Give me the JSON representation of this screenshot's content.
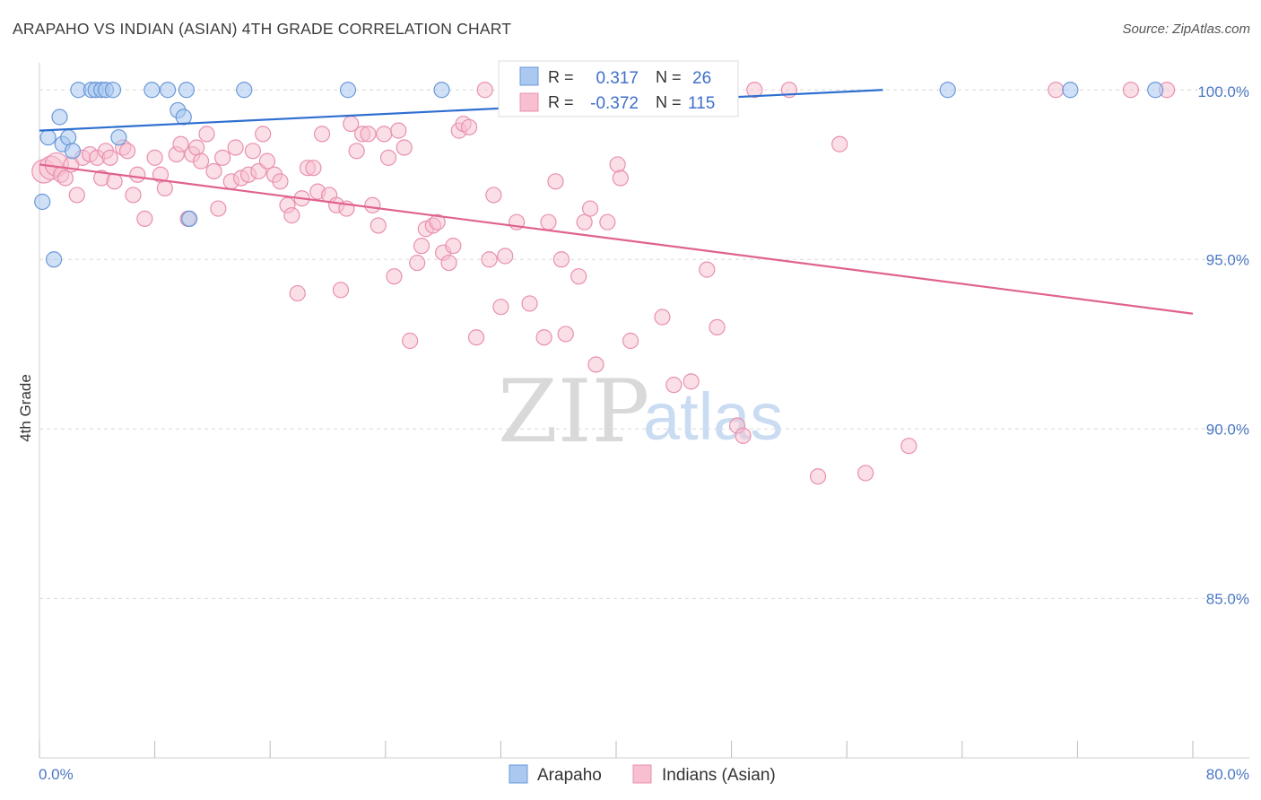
{
  "title": "ARAPAHO VS INDIAN (ASIAN) 4TH GRADE CORRELATION CHART",
  "source": "Source: ZipAtlas.com",
  "watermark": {
    "zip": "ZIP",
    "atlas": "atlas"
  },
  "colors": {
    "blue_fill": "#aac8f0",
    "blue_stroke": "#6a98d8",
    "blue_line": "#2f6fd0",
    "pink_fill": "#f8bfd0",
    "pink_stroke": "#e890ae",
    "pink_line": "#e0628e",
    "grid": "#d8d8d8",
    "tick_label": "#4a78c4"
  },
  "chart_data": {
    "type": "scatter",
    "title": "ARAPAHO VS INDIAN (ASIAN) 4TH GRADE CORRELATION CHART",
    "xlabel": "",
    "ylabel": "4th Grade",
    "xlim": [
      0,
      80
    ],
    "ylim": [
      80.3,
      100.8
    ],
    "x_tick_labels": [
      "0.0%",
      "80.0%"
    ],
    "y_ticks": [
      {
        "value": 100,
        "label": "100.0%"
      },
      {
        "value": 95,
        "label": "95.0%"
      },
      {
        "value": 90,
        "label": "90.0%"
      },
      {
        "value": 85,
        "label": "85.0%"
      }
    ],
    "legend": [
      {
        "name": "Arapaho",
        "r_label": "R =",
        "r_value": "0.317",
        "n_label": "N =",
        "n_value": "26"
      },
      {
        "name": "Indians (Asian)",
        "r_label": "R =",
        "r_value": "-0.372",
        "n_label": "N =",
        "n_value": "115"
      }
    ],
    "series": [
      {
        "name": "Arapaho",
        "trend": {
          "x": [
            0,
            58.5
          ],
          "y": [
            98.8,
            100.0
          ]
        },
        "points": [
          [
            0.2,
            96.7
          ],
          [
            0.6,
            98.6
          ],
          [
            1.0,
            95.0
          ],
          [
            1.4,
            99.2
          ],
          [
            1.6,
            98.4
          ],
          [
            2.0,
            98.6
          ],
          [
            2.3,
            98.2
          ],
          [
            2.7,
            100
          ],
          [
            3.6,
            100
          ],
          [
            3.9,
            100
          ],
          [
            4.3,
            100
          ],
          [
            4.6,
            100
          ],
          [
            5.1,
            100
          ],
          [
            5.5,
            98.6
          ],
          [
            7.8,
            100
          ],
          [
            8.9,
            100
          ],
          [
            9.6,
            99.4
          ],
          [
            10.0,
            99.2
          ],
          [
            10.2,
            100
          ],
          [
            10.4,
            96.2
          ],
          [
            14.2,
            100
          ],
          [
            21.4,
            100
          ],
          [
            27.9,
            100
          ],
          [
            63.0,
            100
          ],
          [
            71.5,
            100
          ],
          [
            77.4,
            100
          ]
        ]
      },
      {
        "name": "Indians (Asian)",
        "trend": {
          "x": [
            0,
            80
          ],
          "y": [
            97.8,
            93.4
          ]
        },
        "points": [
          [
            0.3,
            97.6
          ],
          [
            0.8,
            97.7
          ],
          [
            1.2,
            97.8
          ],
          [
            1.5,
            97.5
          ],
          [
            1.8,
            97.4
          ],
          [
            2.2,
            97.8
          ],
          [
            2.6,
            96.9
          ],
          [
            3.0,
            98.0
          ],
          [
            3.5,
            98.1
          ],
          [
            4.0,
            98.0
          ],
          [
            4.3,
            97.4
          ],
          [
            4.6,
            98.2
          ],
          [
            4.9,
            98.0
          ],
          [
            5.2,
            97.3
          ],
          [
            5.8,
            98.3
          ],
          [
            6.1,
            98.2
          ],
          [
            6.5,
            96.9
          ],
          [
            6.8,
            97.5
          ],
          [
            7.3,
            96.2
          ],
          [
            8.0,
            98.0
          ],
          [
            8.4,
            97.5
          ],
          [
            8.7,
            97.1
          ],
          [
            9.5,
            98.1
          ],
          [
            9.8,
            98.4
          ],
          [
            10.3,
            96.2
          ],
          [
            10.6,
            98.1
          ],
          [
            10.9,
            98.3
          ],
          [
            11.2,
            97.9
          ],
          [
            11.6,
            98.7
          ],
          [
            12.1,
            97.6
          ],
          [
            12.4,
            96.5
          ],
          [
            12.7,
            98.0
          ],
          [
            13.3,
            97.3
          ],
          [
            13.6,
            98.3
          ],
          [
            14.0,
            97.4
          ],
          [
            14.5,
            97.5
          ],
          [
            14.8,
            98.2
          ],
          [
            15.2,
            97.6
          ],
          [
            15.5,
            98.7
          ],
          [
            15.8,
            97.9
          ],
          [
            16.3,
            97.5
          ],
          [
            16.7,
            97.3
          ],
          [
            17.2,
            96.6
          ],
          [
            17.5,
            96.3
          ],
          [
            17.9,
            94.0
          ],
          [
            18.2,
            96.8
          ],
          [
            18.6,
            97.7
          ],
          [
            19.0,
            97.7
          ],
          [
            19.3,
            97.0
          ],
          [
            19.6,
            98.7
          ],
          [
            20.1,
            96.9
          ],
          [
            20.6,
            96.6
          ],
          [
            20.9,
            94.1
          ],
          [
            21.3,
            96.5
          ],
          [
            21.6,
            99.0
          ],
          [
            22.0,
            98.2
          ],
          [
            22.4,
            98.7
          ],
          [
            22.8,
            98.7
          ],
          [
            23.1,
            96.6
          ],
          [
            23.5,
            96.0
          ],
          [
            23.9,
            98.7
          ],
          [
            24.2,
            98.0
          ],
          [
            24.6,
            94.5
          ],
          [
            24.9,
            98.8
          ],
          [
            25.3,
            98.3
          ],
          [
            25.7,
            92.6
          ],
          [
            26.2,
            94.9
          ],
          [
            26.5,
            95.4
          ],
          [
            26.8,
            95.9
          ],
          [
            27.3,
            96.0
          ],
          [
            27.6,
            96.1
          ],
          [
            28.0,
            95.2
          ],
          [
            28.4,
            94.9
          ],
          [
            28.7,
            95.4
          ],
          [
            29.1,
            98.8
          ],
          [
            29.4,
            99.0
          ],
          [
            29.8,
            98.9
          ],
          [
            30.3,
            92.7
          ],
          [
            30.9,
            100
          ],
          [
            31.2,
            95.0
          ],
          [
            31.5,
            96.9
          ],
          [
            32.0,
            93.6
          ],
          [
            32.3,
            95.1
          ],
          [
            33.1,
            96.1
          ],
          [
            34.0,
            93.7
          ],
          [
            35.0,
            92.7
          ],
          [
            35.3,
            96.1
          ],
          [
            35.8,
            97.3
          ],
          [
            36.2,
            95.0
          ],
          [
            36.5,
            92.8
          ],
          [
            37.4,
            94.5
          ],
          [
            37.8,
            96.1
          ],
          [
            38.2,
            96.5
          ],
          [
            38.6,
            91.9
          ],
          [
            39.4,
            96.1
          ],
          [
            40.1,
            97.8
          ],
          [
            40.3,
            97.4
          ],
          [
            41.0,
            92.6
          ],
          [
            41.8,
            100
          ],
          [
            43.2,
            93.3
          ],
          [
            44.0,
            91.3
          ],
          [
            45.2,
            91.4
          ],
          [
            46.3,
            94.7
          ],
          [
            47.0,
            93.0
          ],
          [
            48.4,
            90.1
          ],
          [
            48.8,
            89.8
          ],
          [
            49.6,
            100
          ],
          [
            52.0,
            100
          ],
          [
            54.0,
            88.6
          ],
          [
            55.5,
            98.4
          ],
          [
            57.3,
            88.7
          ],
          [
            60.3,
            89.5
          ],
          [
            70.5,
            100
          ],
          [
            75.7,
            100
          ],
          [
            78.2,
            100
          ]
        ]
      }
    ]
  }
}
